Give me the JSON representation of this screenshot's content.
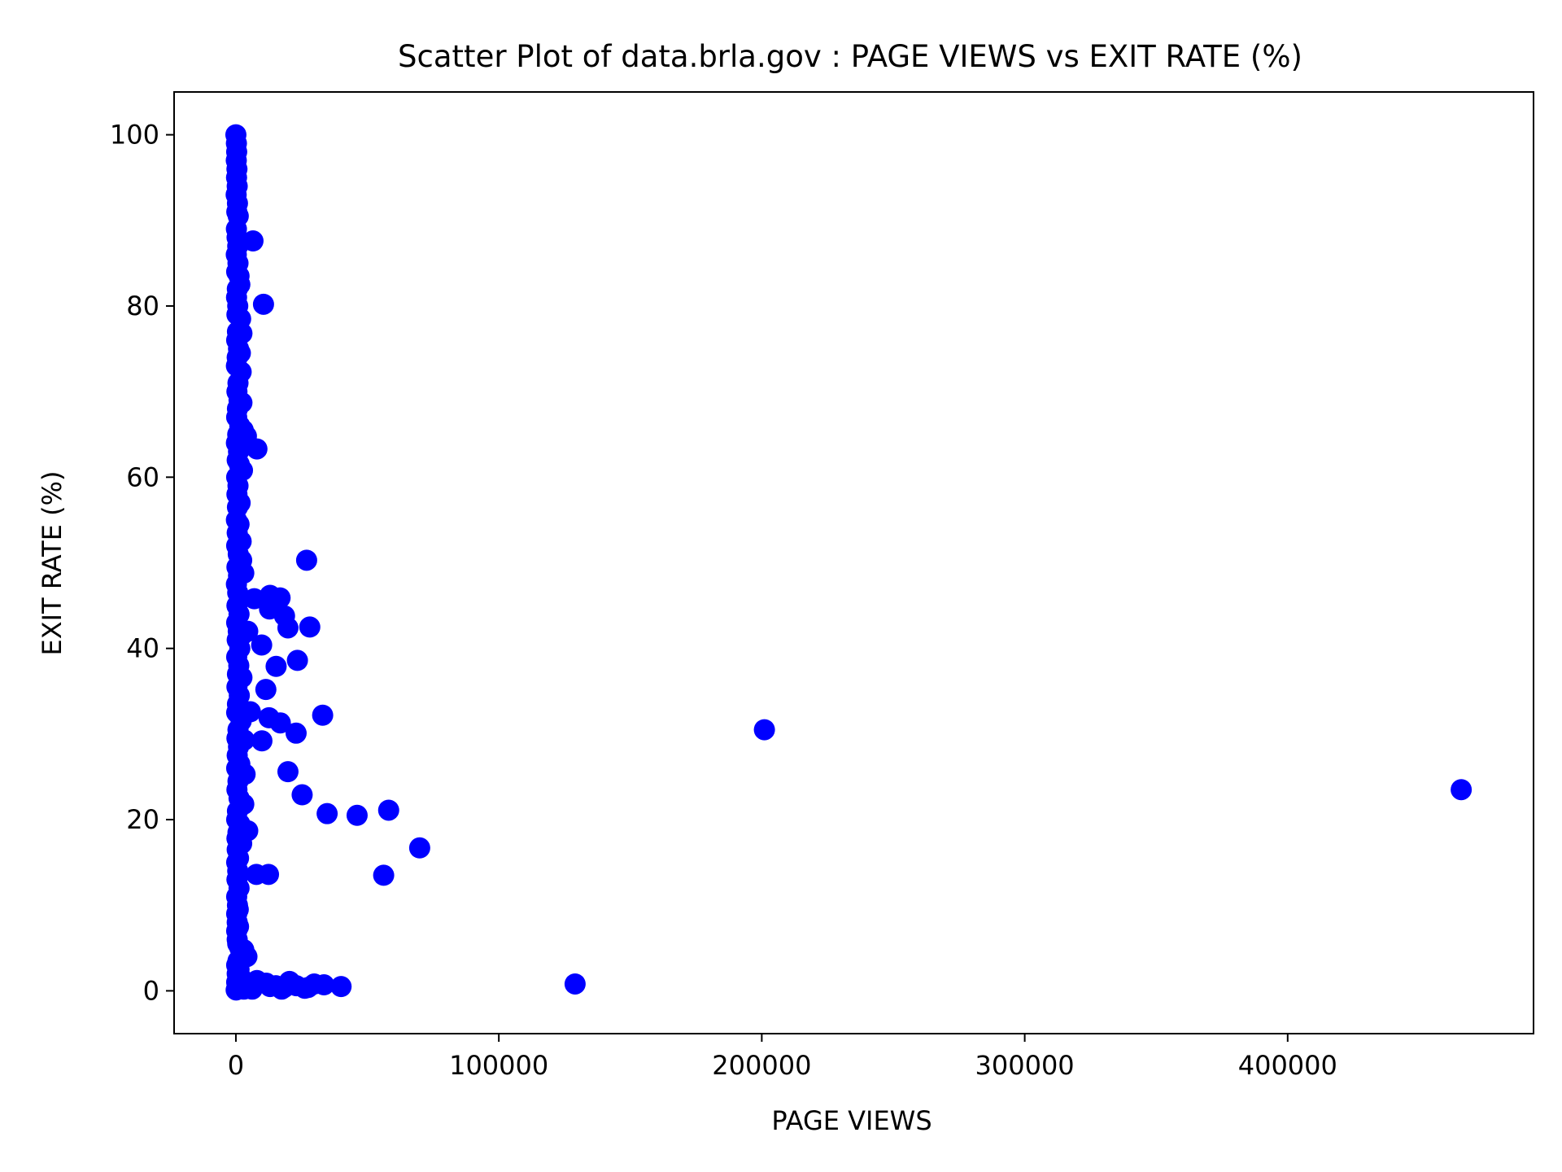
{
  "chart_data": {
    "type": "scatter",
    "title": "Scatter Plot of data.brla.gov : PAGE VIEWS vs EXIT RATE (%)",
    "xlabel": "PAGE VIEWS",
    "ylabel": "EXIT RATE (%)",
    "xlim": [
      -23500,
      493500
    ],
    "ylim": [
      -5,
      105
    ],
    "x_ticks": [
      0,
      100000,
      200000,
      300000,
      400000
    ],
    "x_tick_labels": [
      "0",
      "100000",
      "200000",
      "300000",
      "400000"
    ],
    "y_ticks": [
      0,
      20,
      40,
      60,
      80,
      100
    ],
    "y_tick_labels": [
      "0",
      "20",
      "40",
      "60",
      "80",
      "100"
    ],
    "grid": false,
    "marker_color": "#0000ff",
    "series": [
      {
        "points": [
          [
            0,
            100
          ],
          [
            200,
            99
          ],
          [
            300,
            98
          ],
          [
            150,
            97
          ],
          [
            400,
            96
          ],
          [
            250,
            95
          ],
          [
            500,
            94
          ],
          [
            100,
            93
          ],
          [
            600,
            92
          ],
          [
            350,
            91
          ],
          [
            900,
            90.5
          ],
          [
            200,
            89
          ],
          [
            450,
            88
          ],
          [
            700,
            87
          ],
          [
            150,
            86
          ],
          [
            800,
            85
          ],
          [
            300,
            84
          ],
          [
            1200,
            83.5
          ],
          [
            550,
            82
          ],
          [
            1500,
            82.5
          ],
          [
            250,
            81
          ],
          [
            700,
            80
          ],
          [
            400,
            79
          ],
          [
            1800,
            78.5
          ],
          [
            600,
            77
          ],
          [
            2300,
            76.8
          ],
          [
            300,
            76
          ],
          [
            1000,
            75
          ],
          [
            500,
            74
          ],
          [
            1700,
            74.5
          ],
          [
            200,
            73
          ],
          [
            2000,
            72.3
          ],
          [
            800,
            71
          ],
          [
            400,
            70
          ],
          [
            1200,
            69
          ],
          [
            2300,
            68.7
          ],
          [
            600,
            68
          ],
          [
            300,
            67
          ],
          [
            1500,
            66
          ],
          [
            2800,
            65.5
          ],
          [
            700,
            65
          ],
          [
            4000,
            64.8
          ],
          [
            200,
            64
          ],
          [
            1000,
            63
          ],
          [
            500,
            62
          ],
          [
            1300,
            61.5
          ],
          [
            2500,
            60.8
          ],
          [
            300,
            60
          ],
          [
            800,
            59
          ],
          [
            400,
            58
          ],
          [
            1600,
            57
          ],
          [
            600,
            56.5
          ],
          [
            200,
            55
          ],
          [
            1200,
            54.5
          ],
          [
            500,
            53.5
          ],
          [
            2000,
            52.5
          ],
          [
            300,
            52
          ],
          [
            900,
            51
          ],
          [
            2200,
            50.3
          ],
          [
            400,
            49.5
          ],
          [
            1000,
            48.5
          ],
          [
            3000,
            48.8
          ],
          [
            200,
            47.5
          ],
          [
            700,
            46.5
          ],
          [
            1800,
            45.8
          ],
          [
            400,
            45
          ],
          [
            1200,
            44
          ],
          [
            300,
            43
          ],
          [
            900,
            42
          ],
          [
            2500,
            41.6
          ],
          [
            500,
            41
          ],
          [
            1500,
            40
          ],
          [
            300,
            39
          ],
          [
            1100,
            38
          ],
          [
            600,
            37
          ],
          [
            2300,
            36.6
          ],
          [
            400,
            35.5
          ],
          [
            1300,
            34.5
          ],
          [
            600,
            33.5
          ],
          [
            4200,
            32.6
          ],
          [
            300,
            32.5
          ],
          [
            2000,
            31.5
          ],
          [
            800,
            30.5
          ],
          [
            400,
            29.5
          ],
          [
            3200,
            29.3
          ],
          [
            1000,
            28.5
          ],
          [
            500,
            27.5
          ],
          [
            1500,
            26.5
          ],
          [
            300,
            26
          ],
          [
            3500,
            25.3
          ],
          [
            800,
            24.5
          ],
          [
            400,
            23.5
          ],
          [
            1200,
            22.5
          ],
          [
            3000,
            21.8
          ],
          [
            600,
            21
          ],
          [
            300,
            20
          ],
          [
            1500,
            19.5
          ],
          [
            800,
            18.5
          ],
          [
            4500,
            18.7
          ],
          [
            400,
            17.8
          ],
          [
            2200,
            17.2
          ],
          [
            500,
            16.5
          ],
          [
            1000,
            15.5
          ],
          [
            300,
            15
          ],
          [
            700,
            14
          ],
          [
            400,
            13
          ],
          [
            1200,
            12
          ],
          [
            300,
            11
          ],
          [
            600,
            10
          ],
          [
            900,
            9.5
          ],
          [
            300,
            9
          ],
          [
            500,
            8
          ],
          [
            1000,
            7.5
          ],
          [
            300,
            7
          ],
          [
            500,
            6
          ],
          [
            700,
            5.5
          ],
          [
            1500,
            5
          ],
          [
            3000,
            4.8
          ],
          [
            4200,
            4
          ],
          [
            800,
            3.5
          ],
          [
            300,
            3
          ],
          [
            1200,
            2.5
          ],
          [
            500,
            2
          ],
          [
            2000,
            1.5
          ],
          [
            300,
            1
          ],
          [
            4000,
            0.8
          ],
          [
            700,
            0.5
          ],
          [
            1800,
            0.3
          ],
          [
            100,
            0.1
          ],
          [
            3000,
            0.2
          ],
          [
            6500,
            87.6
          ],
          [
            10500,
            80.2
          ],
          [
            8000,
            63.3
          ],
          [
            26900,
            50.3
          ],
          [
            7000,
            45.8
          ],
          [
            13000,
            46.2
          ],
          [
            16800,
            45.9
          ],
          [
            12800,
            44.6
          ],
          [
            18500,
            43.8
          ],
          [
            19800,
            42.4
          ],
          [
            28100,
            42.5
          ],
          [
            4500,
            42.0
          ],
          [
            9800,
            40.4
          ],
          [
            23400,
            38.6
          ],
          [
            15300,
            37.9
          ],
          [
            11400,
            35.2
          ],
          [
            5500,
            32.6
          ],
          [
            12600,
            31.9
          ],
          [
            16900,
            31.3
          ],
          [
            33000,
            32.2
          ],
          [
            22900,
            30.1
          ],
          [
            9900,
            29.2
          ],
          [
            19800,
            25.6
          ],
          [
            25200,
            22.9
          ],
          [
            34700,
            20.7
          ],
          [
            46100,
            20.5
          ],
          [
            58100,
            21.1
          ],
          [
            69900,
            16.7
          ],
          [
            56200,
            13.5
          ],
          [
            7800,
            13.6
          ],
          [
            12400,
            13.6
          ],
          [
            201000,
            30.5
          ],
          [
            466000,
            23.5
          ],
          [
            129000,
            0.8
          ],
          [
            8000,
            1.2
          ],
          [
            11500,
            0.9
          ],
          [
            13000,
            0.5
          ],
          [
            15200,
            0.6
          ],
          [
            18400,
            0.4
          ],
          [
            20400,
            1.1
          ],
          [
            23000,
            0.6
          ],
          [
            27500,
            0.4
          ],
          [
            29800,
            0.8
          ],
          [
            33500,
            0.7
          ],
          [
            40000,
            0.5
          ],
          [
            6200,
            0.2
          ],
          [
            17400,
            0.2
          ],
          [
            26200,
            0.3
          ]
        ]
      }
    ]
  }
}
